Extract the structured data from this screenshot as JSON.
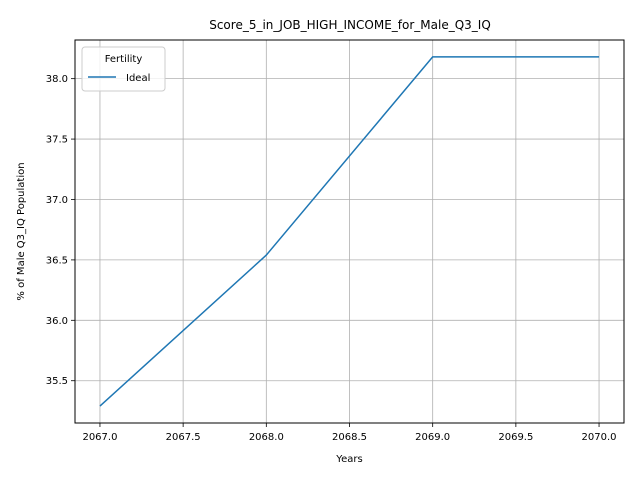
{
  "chart_data": {
    "type": "line",
    "title": "Score_5_in_JOB_HIGH_INCOME_for_Male_Q3_IQ",
    "xlabel": "Years",
    "ylabel": "% of Male Q3_IQ Population",
    "x": [
      2067,
      2068,
      2069,
      2070
    ],
    "series": [
      {
        "name": "Ideal",
        "values": [
          35.29,
          36.54,
          38.18,
          38.18
        ],
        "color": "#1f77b4"
      }
    ],
    "xlim": [
      2066.85,
      2070.15
    ],
    "ylim": [
      35.15,
      38.32
    ],
    "xticks": [
      2067.0,
      2067.5,
      2068.0,
      2068.5,
      2069.0,
      2069.5,
      2070.0
    ],
    "xtick_labels": [
      "2067.0",
      "2067.5",
      "2068.0",
      "2068.5",
      "2069.0",
      "2069.5",
      "2070.0"
    ],
    "yticks": [
      35.5,
      36.0,
      36.5,
      37.0,
      37.5,
      38.0
    ],
    "ytick_labels": [
      "35.5",
      "36.0",
      "36.5",
      "37.0",
      "37.5",
      "38.0"
    ],
    "grid": true,
    "legend": {
      "title": "Fertility",
      "placement": "top-left"
    }
  }
}
